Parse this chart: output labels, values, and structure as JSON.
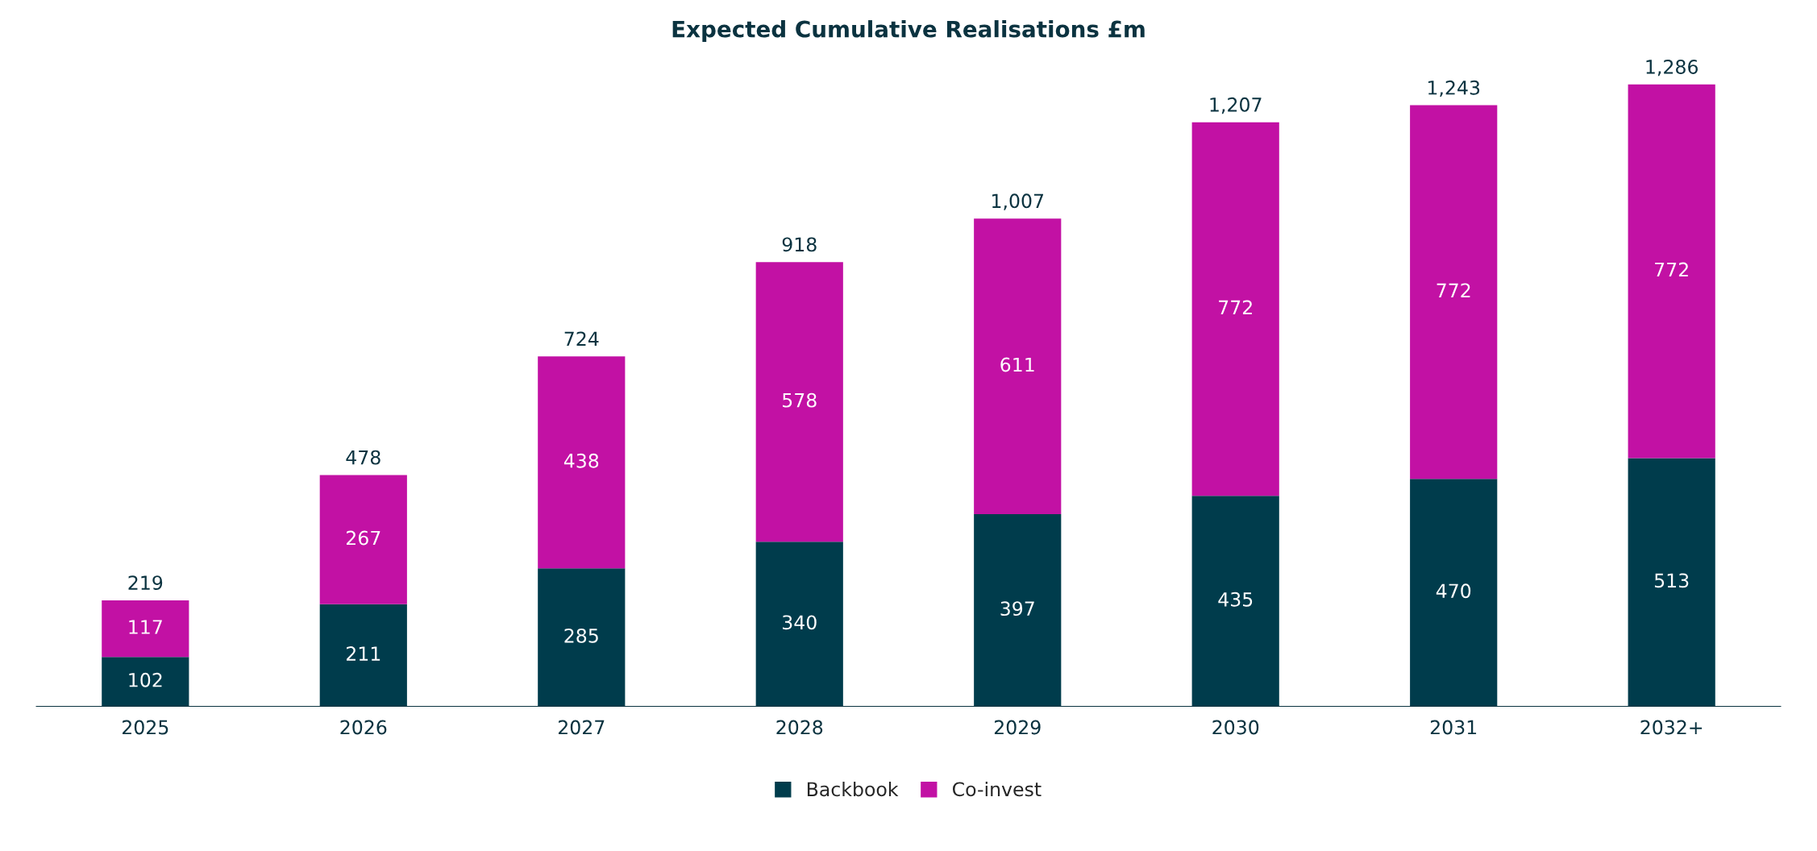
{
  "chart_data": {
    "type": "bar",
    "title": "Expected Cumulative Realisations £m",
    "categories": [
      "2025",
      "2026",
      "2027",
      "2028",
      "2029",
      "2030",
      "2031",
      "2032+"
    ],
    "stacked": true,
    "data_labels": true,
    "legend": "bottom",
    "grid": false,
    "series": [
      {
        "name": "Backbook",
        "color": "#003c4c",
        "values": [
          102,
          211,
          285,
          340,
          397,
          435,
          470,
          513
        ]
      },
      {
        "name": "Co-invest",
        "color": "#c211a4",
        "values": [
          117,
          267,
          438,
          578,
          611,
          772,
          772,
          772
        ]
      }
    ],
    "totals": [
      "219",
      "478",
      "724",
      "918",
      "1,007",
      "1,207",
      "1,243",
      "1,286"
    ]
  }
}
